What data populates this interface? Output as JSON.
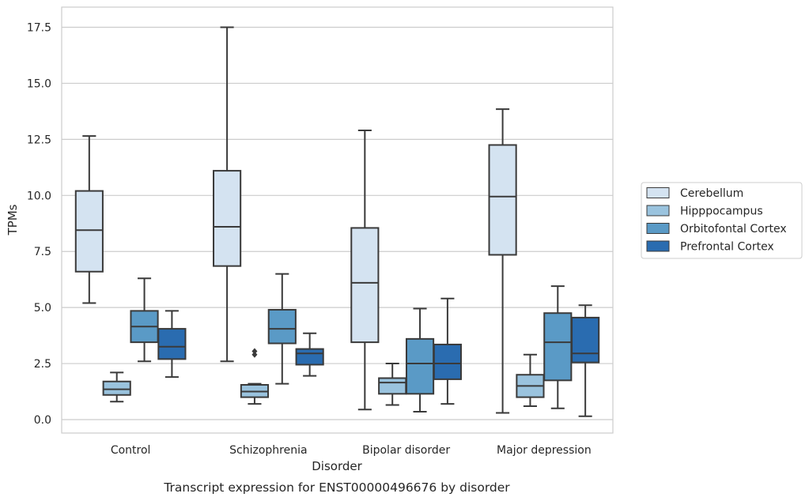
{
  "chart_data": {
    "type": "box",
    "title": "Transcript expression for ENST00000496676 by disorder",
    "xlabel": "Disorder",
    "ylabel": "TPMs",
    "ylim": [
      -0.6,
      18.4
    ],
    "yticks": [
      "0.0",
      "2.5",
      "5.0",
      "7.5",
      "10.0",
      "12.5",
      "15.0",
      "17.5"
    ],
    "ytick_values": [
      0,
      2.5,
      5,
      7.5,
      10,
      12.5,
      15,
      17.5
    ],
    "grid": "horizontal",
    "legend_position": "right",
    "categories": [
      "Control",
      "Schizophrenia",
      "Bipolar disorder",
      "Major depression"
    ],
    "series": [
      {
        "name": "Cerebellum",
        "color": "#d4e3f1",
        "boxes": [
          {
            "whislo": 5.2,
            "q1": 6.6,
            "med": 8.45,
            "q3": 10.2,
            "whishi": 12.65,
            "fliers": []
          },
          {
            "whislo": 2.6,
            "q1": 6.85,
            "med": 8.6,
            "q3": 11.1,
            "whishi": 17.5,
            "fliers": []
          },
          {
            "whislo": 0.45,
            "q1": 3.45,
            "med": 6.1,
            "q3": 8.55,
            "whishi": 12.9,
            "fliers": []
          },
          {
            "whislo": 0.3,
            "q1": 7.35,
            "med": 9.95,
            "q3": 12.25,
            "whishi": 13.85,
            "fliers": []
          }
        ]
      },
      {
        "name": "Hipppocampus",
        "color": "#9ac3de",
        "boxes": [
          {
            "whislo": 0.8,
            "q1": 1.1,
            "med": 1.35,
            "q3": 1.7,
            "whishi": 2.1,
            "fliers": []
          },
          {
            "whislo": 0.7,
            "q1": 1.0,
            "med": 1.25,
            "q3": 1.55,
            "whishi": 1.6,
            "fliers": [
              2.9,
              3.05
            ]
          },
          {
            "whislo": 0.65,
            "q1": 1.15,
            "med": 1.65,
            "q3": 1.85,
            "whishi": 2.5,
            "fliers": []
          },
          {
            "whislo": 0.6,
            "q1": 1.0,
            "med": 1.5,
            "q3": 2.0,
            "whishi": 2.9,
            "fliers": []
          }
        ]
      },
      {
        "name": "Orbitofontal Cortex",
        "color": "#5a9ac6",
        "boxes": [
          {
            "whislo": 2.6,
            "q1": 3.45,
            "med": 4.15,
            "q3": 4.85,
            "whishi": 6.3,
            "fliers": []
          },
          {
            "whislo": 1.6,
            "q1": 3.4,
            "med": 4.05,
            "q3": 4.9,
            "whishi": 6.5,
            "fliers": []
          },
          {
            "whislo": 0.35,
            "q1": 1.15,
            "med": 2.5,
            "q3": 3.6,
            "whishi": 4.95,
            "fliers": []
          },
          {
            "whislo": 0.5,
            "q1": 1.75,
            "med": 3.45,
            "q3": 4.75,
            "whishi": 5.95,
            "fliers": []
          }
        ]
      },
      {
        "name": "Prefrontal Cortex",
        "color": "#2a6cb0",
        "boxes": [
          {
            "whislo": 1.9,
            "q1": 2.7,
            "med": 3.25,
            "q3": 4.05,
            "whishi": 4.85,
            "fliers": []
          },
          {
            "whislo": 1.95,
            "q1": 2.45,
            "med": 2.95,
            "q3": 3.15,
            "whishi": 3.85,
            "fliers": []
          },
          {
            "whislo": 0.7,
            "q1": 1.8,
            "med": 2.5,
            "q3": 3.35,
            "whishi": 5.4,
            "fliers": []
          },
          {
            "whislo": 0.15,
            "q1": 2.55,
            "med": 2.95,
            "q3": 4.55,
            "whishi": 5.1,
            "fliers": []
          }
        ]
      }
    ]
  }
}
